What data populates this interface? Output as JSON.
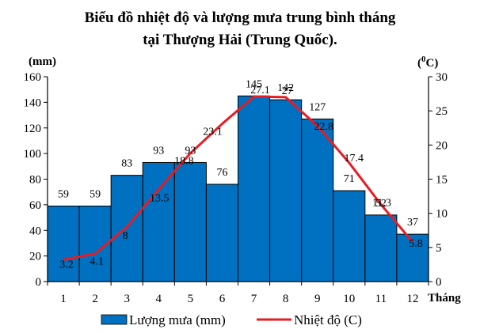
{
  "chart_data": {
    "type": "bar+line",
    "title_lines": [
      "Biểu đồ nhiệt độ và lượng mưa trung bình tháng",
      "tại Thượng Hải (Trung Quốc)."
    ],
    "categories": [
      "1",
      "2",
      "3",
      "4",
      "5",
      "6",
      "7",
      "8",
      "9",
      "10",
      "11",
      "12"
    ],
    "xlabel": "Tháng",
    "left_axis": {
      "unit_label": "(mm)",
      "range": [
        0,
        160
      ],
      "ticks": [
        0,
        20,
        40,
        60,
        80,
        100,
        120,
        140,
        160
      ]
    },
    "right_axis": {
      "unit_label_base": "(",
      "unit_label_sup": "0",
      "unit_label_end": "C)",
      "range": [
        0,
        30
      ],
      "ticks": [
        0,
        5,
        10,
        15,
        20,
        25,
        30
      ]
    },
    "series": [
      {
        "name": "Lượng mưa (mm)",
        "type": "bar",
        "axis": "left",
        "color": "#0070C0",
        "values": [
          59,
          59,
          83,
          93,
          93,
          76,
          145,
          142,
          127,
          71,
          52,
          37
        ],
        "labels": [
          "59",
          "59",
          "83",
          "93",
          "93",
          "76",
          "145",
          "142",
          "127",
          "71",
          "52",
          "37"
        ]
      },
      {
        "name": "Nhiệt độ (C)",
        "type": "line",
        "axis": "right",
        "color": "#E81C24",
        "values": [
          3.2,
          4.1,
          8,
          13.5,
          18.8,
          23.1,
          27.1,
          27,
          22.8,
          17.4,
          11.3,
          5.8
        ],
        "labels": [
          "3.2",
          "4.1",
          "8",
          "13.5",
          "18.8",
          "23.1",
          "27.1",
          "27",
          "22.8",
          "17.4",
          "11.3",
          "5.8"
        ]
      }
    ],
    "grid": false,
    "legend_position": "bottom"
  }
}
